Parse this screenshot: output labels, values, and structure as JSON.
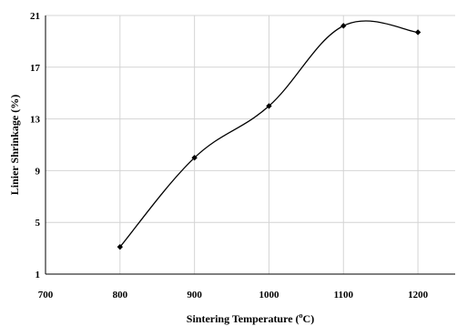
{
  "chart_data": {
    "type": "line",
    "xlabel": "Sintering Temperature (",
    "xlabel_unit_sup": "o",
    "xlabel_unit": "C)",
    "ylabel": "Linier Shrinkage (%)",
    "xlim": [
      700,
      1250
    ],
    "ylim": [
      1,
      21
    ],
    "x_ticks": [
      700,
      800,
      900,
      1000,
      1100,
      1200
    ],
    "y_ticks": [
      1,
      5,
      9,
      13,
      17,
      21
    ],
    "grid": true,
    "series": [
      {
        "x": [
          800,
          900,
          1000,
          1100,
          1200
        ],
        "y": [
          3.1,
          10.0,
          14.0,
          20.2,
          19.7
        ],
        "smooth": true,
        "color": "#000000"
      }
    ]
  }
}
